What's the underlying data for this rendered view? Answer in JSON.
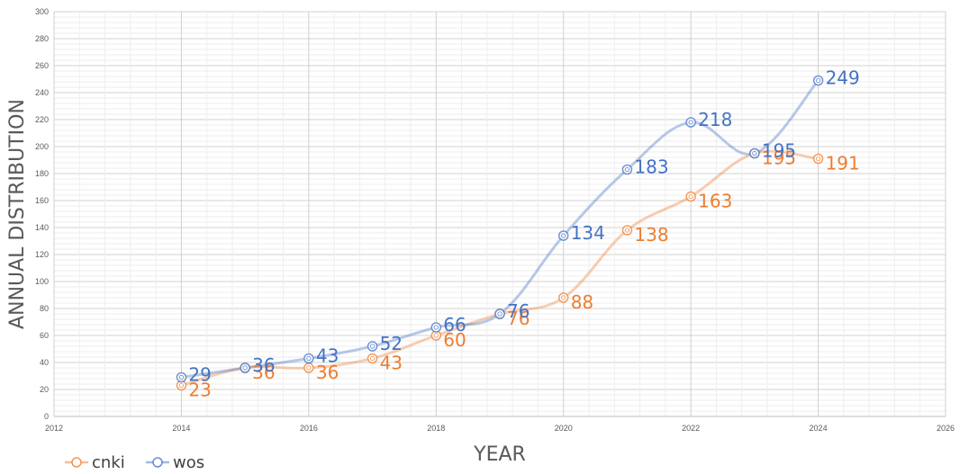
{
  "chart_data": {
    "type": "line",
    "title": "",
    "xlabel": "YEAR",
    "ylabel": "ANNUAL DISTRIBUTION",
    "xlim": [
      2012,
      2026
    ],
    "ylim": [
      0,
      300
    ],
    "x_ticks": [
      "2012",
      "2014",
      "2016",
      "2018",
      "2020",
      "2022",
      "2024",
      "2026"
    ],
    "y_ticks": [
      "0",
      "20",
      "40",
      "60",
      "80",
      "100",
      "120",
      "140",
      "160",
      "180",
      "200",
      "220",
      "240",
      "260",
      "280",
      "300"
    ],
    "grid": true,
    "legend_position": "bottom-left",
    "series": [
      {
        "name": "cnki",
        "color": "#ed7d31",
        "x": [
          2014,
          2015,
          2016,
          2017,
          2018,
          2019,
          2020,
          2021,
          2022,
          2023,
          2024
        ],
        "values": [
          23,
          36,
          36,
          43,
          60,
          76,
          88,
          138,
          163,
          195,
          191
        ],
        "labels": [
          "23",
          "36",
          "36",
          "43",
          "60",
          "76",
          "88",
          "138",
          "163",
          "195",
          "191"
        ]
      },
      {
        "name": "wos",
        "color": "#4472c4",
        "x": [
          2014,
          2015,
          2016,
          2017,
          2018,
          2019,
          2020,
          2021,
          2022,
          2023,
          2024
        ],
        "values": [
          29,
          36,
          43,
          52,
          66,
          76,
          134,
          183,
          218,
          195,
          249
        ],
        "labels": [
          "29",
          "36",
          "43",
          "52",
          "66",
          "76",
          "134",
          "183",
          "218",
          "195",
          "249"
        ]
      }
    ]
  }
}
